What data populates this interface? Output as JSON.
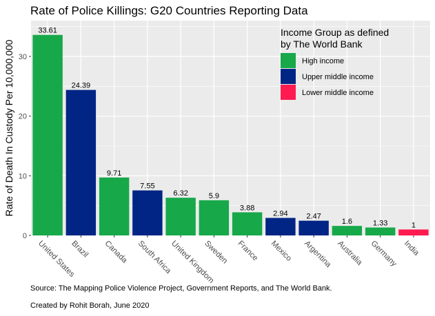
{
  "chart_data": {
    "type": "bar",
    "title": "Rate of Police Killings: G20 Countries Reporting Data",
    "ylabel": "Rate of Death In Custody Per 10,000,000",
    "xlabel": "",
    "ylim": [
      0,
      36
    ],
    "yticks": [
      0,
      10,
      20,
      30
    ],
    "grid": true,
    "categories": [
      "United States",
      "Brazil",
      "Canada",
      "South Africa",
      "United Kingdom",
      "Sweden",
      "France",
      "Mexico",
      "Argentina",
      "Australia",
      "Germany",
      "India"
    ],
    "values": [
      33.61,
      24.39,
      9.71,
      7.55,
      6.32,
      5.9,
      3.88,
      2.94,
      2.47,
      1.6,
      1.33,
      1
    ],
    "value_labels": [
      "33.61",
      "24.39",
      "9.71",
      "7.55",
      "6.32",
      "5.9",
      "3.88",
      "2.94",
      "2.47",
      "1.6",
      "1.33",
      "1"
    ],
    "groups": [
      "High income",
      "Upper middle income",
      "High income",
      "Upper middle income",
      "High income",
      "High income",
      "High income",
      "Upper middle income",
      "Upper middle income",
      "High income",
      "High income",
      "Lower middle income"
    ],
    "legend": {
      "title_lines": [
        "Income Group as defined",
        "by The World Bank"
      ],
      "placement": "top-right",
      "entries": [
        {
          "name": "High income",
          "color": "#17a84a"
        },
        {
          "name": "Upper middle income",
          "color": "#002585"
        },
        {
          "name": "Lower middle income",
          "color": "#ff1a4f"
        }
      ]
    },
    "panel_background": "#ebebeb",
    "grid_color": "#ffffff"
  },
  "captions": {
    "source": "Source: The Mapping Police Violence Project, Government Reports, and The World Bank.",
    "credit": "Created by Rohit Borah, June 2020"
  }
}
